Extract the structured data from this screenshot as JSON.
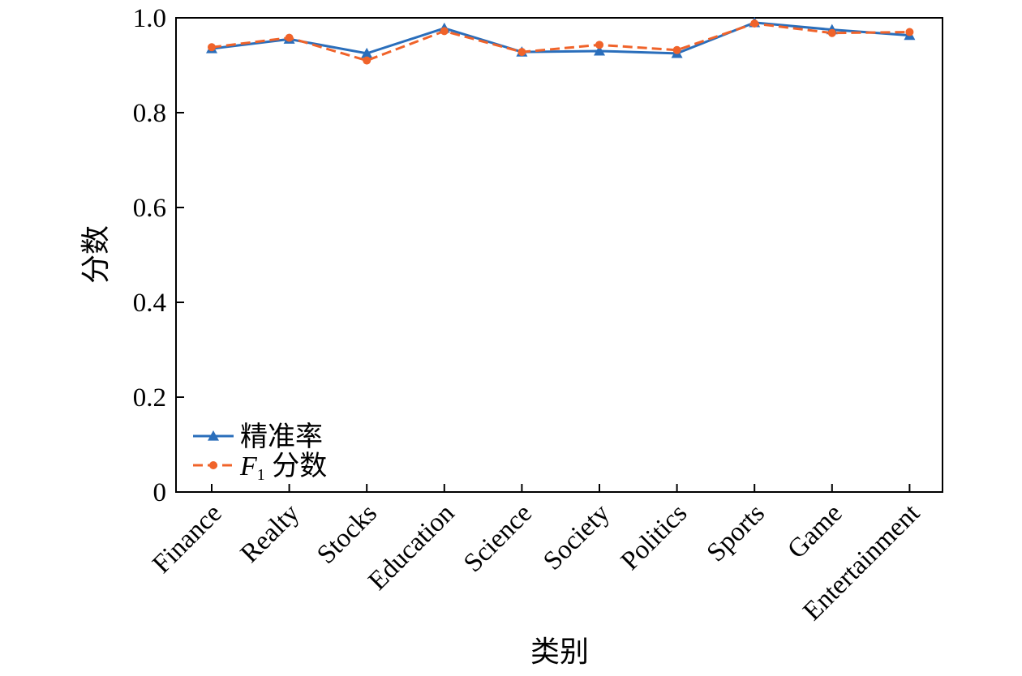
{
  "chart_data": {
    "type": "line",
    "categories": [
      "Finance",
      "Realty",
      "Stocks",
      "Education",
      "Science",
      "Society",
      "Politics",
      "Sports",
      "Game",
      "Entertainment"
    ],
    "series": [
      {
        "name": "精准率",
        "values": [
          0.935,
          0.955,
          0.925,
          0.978,
          0.928,
          0.93,
          0.925,
          0.99,
          0.975,
          0.963
        ],
        "color": "#2a6ebb",
        "marker": "triangle",
        "line_style": "solid"
      },
      {
        "name": "F1 分数",
        "name_parts": {
          "italic": "F",
          "sub": "1",
          "rest": " 分数"
        },
        "values": [
          0.938,
          0.958,
          0.91,
          0.972,
          0.928,
          0.943,
          0.932,
          0.988,
          0.968,
          0.97
        ],
        "color": "#f0632a",
        "marker": "circle",
        "line_style": "dashed"
      }
    ],
    "title": "",
    "xlabel": "类别",
    "ylabel": "分数",
    "ylim": [
      0,
      1.0
    ],
    "yticks": [
      0,
      0.2,
      0.4,
      0.6,
      0.8,
      1.0
    ],
    "ytick_labels": [
      "0",
      "0.2",
      "0.4",
      "0.6",
      "0.8",
      "1.0"
    ],
    "grid": false,
    "legend_position": "bottom-left"
  }
}
